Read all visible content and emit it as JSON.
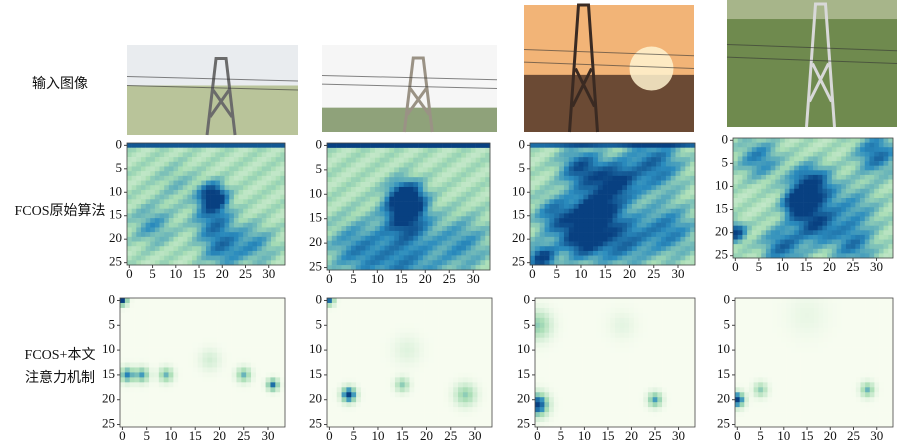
{
  "rows": [
    {
      "label": "输入图像"
    },
    {
      "label": "FCOS原始算法"
    },
    {
      "label_lines": [
        "FCOS+本文",
        "注意力机制"
      ]
    }
  ],
  "heatmap_axes": {
    "xticks": [
      0,
      5,
      10,
      15,
      20,
      25,
      30
    ],
    "yticks": [
      0,
      5,
      10,
      15,
      20,
      25
    ]
  }
}
